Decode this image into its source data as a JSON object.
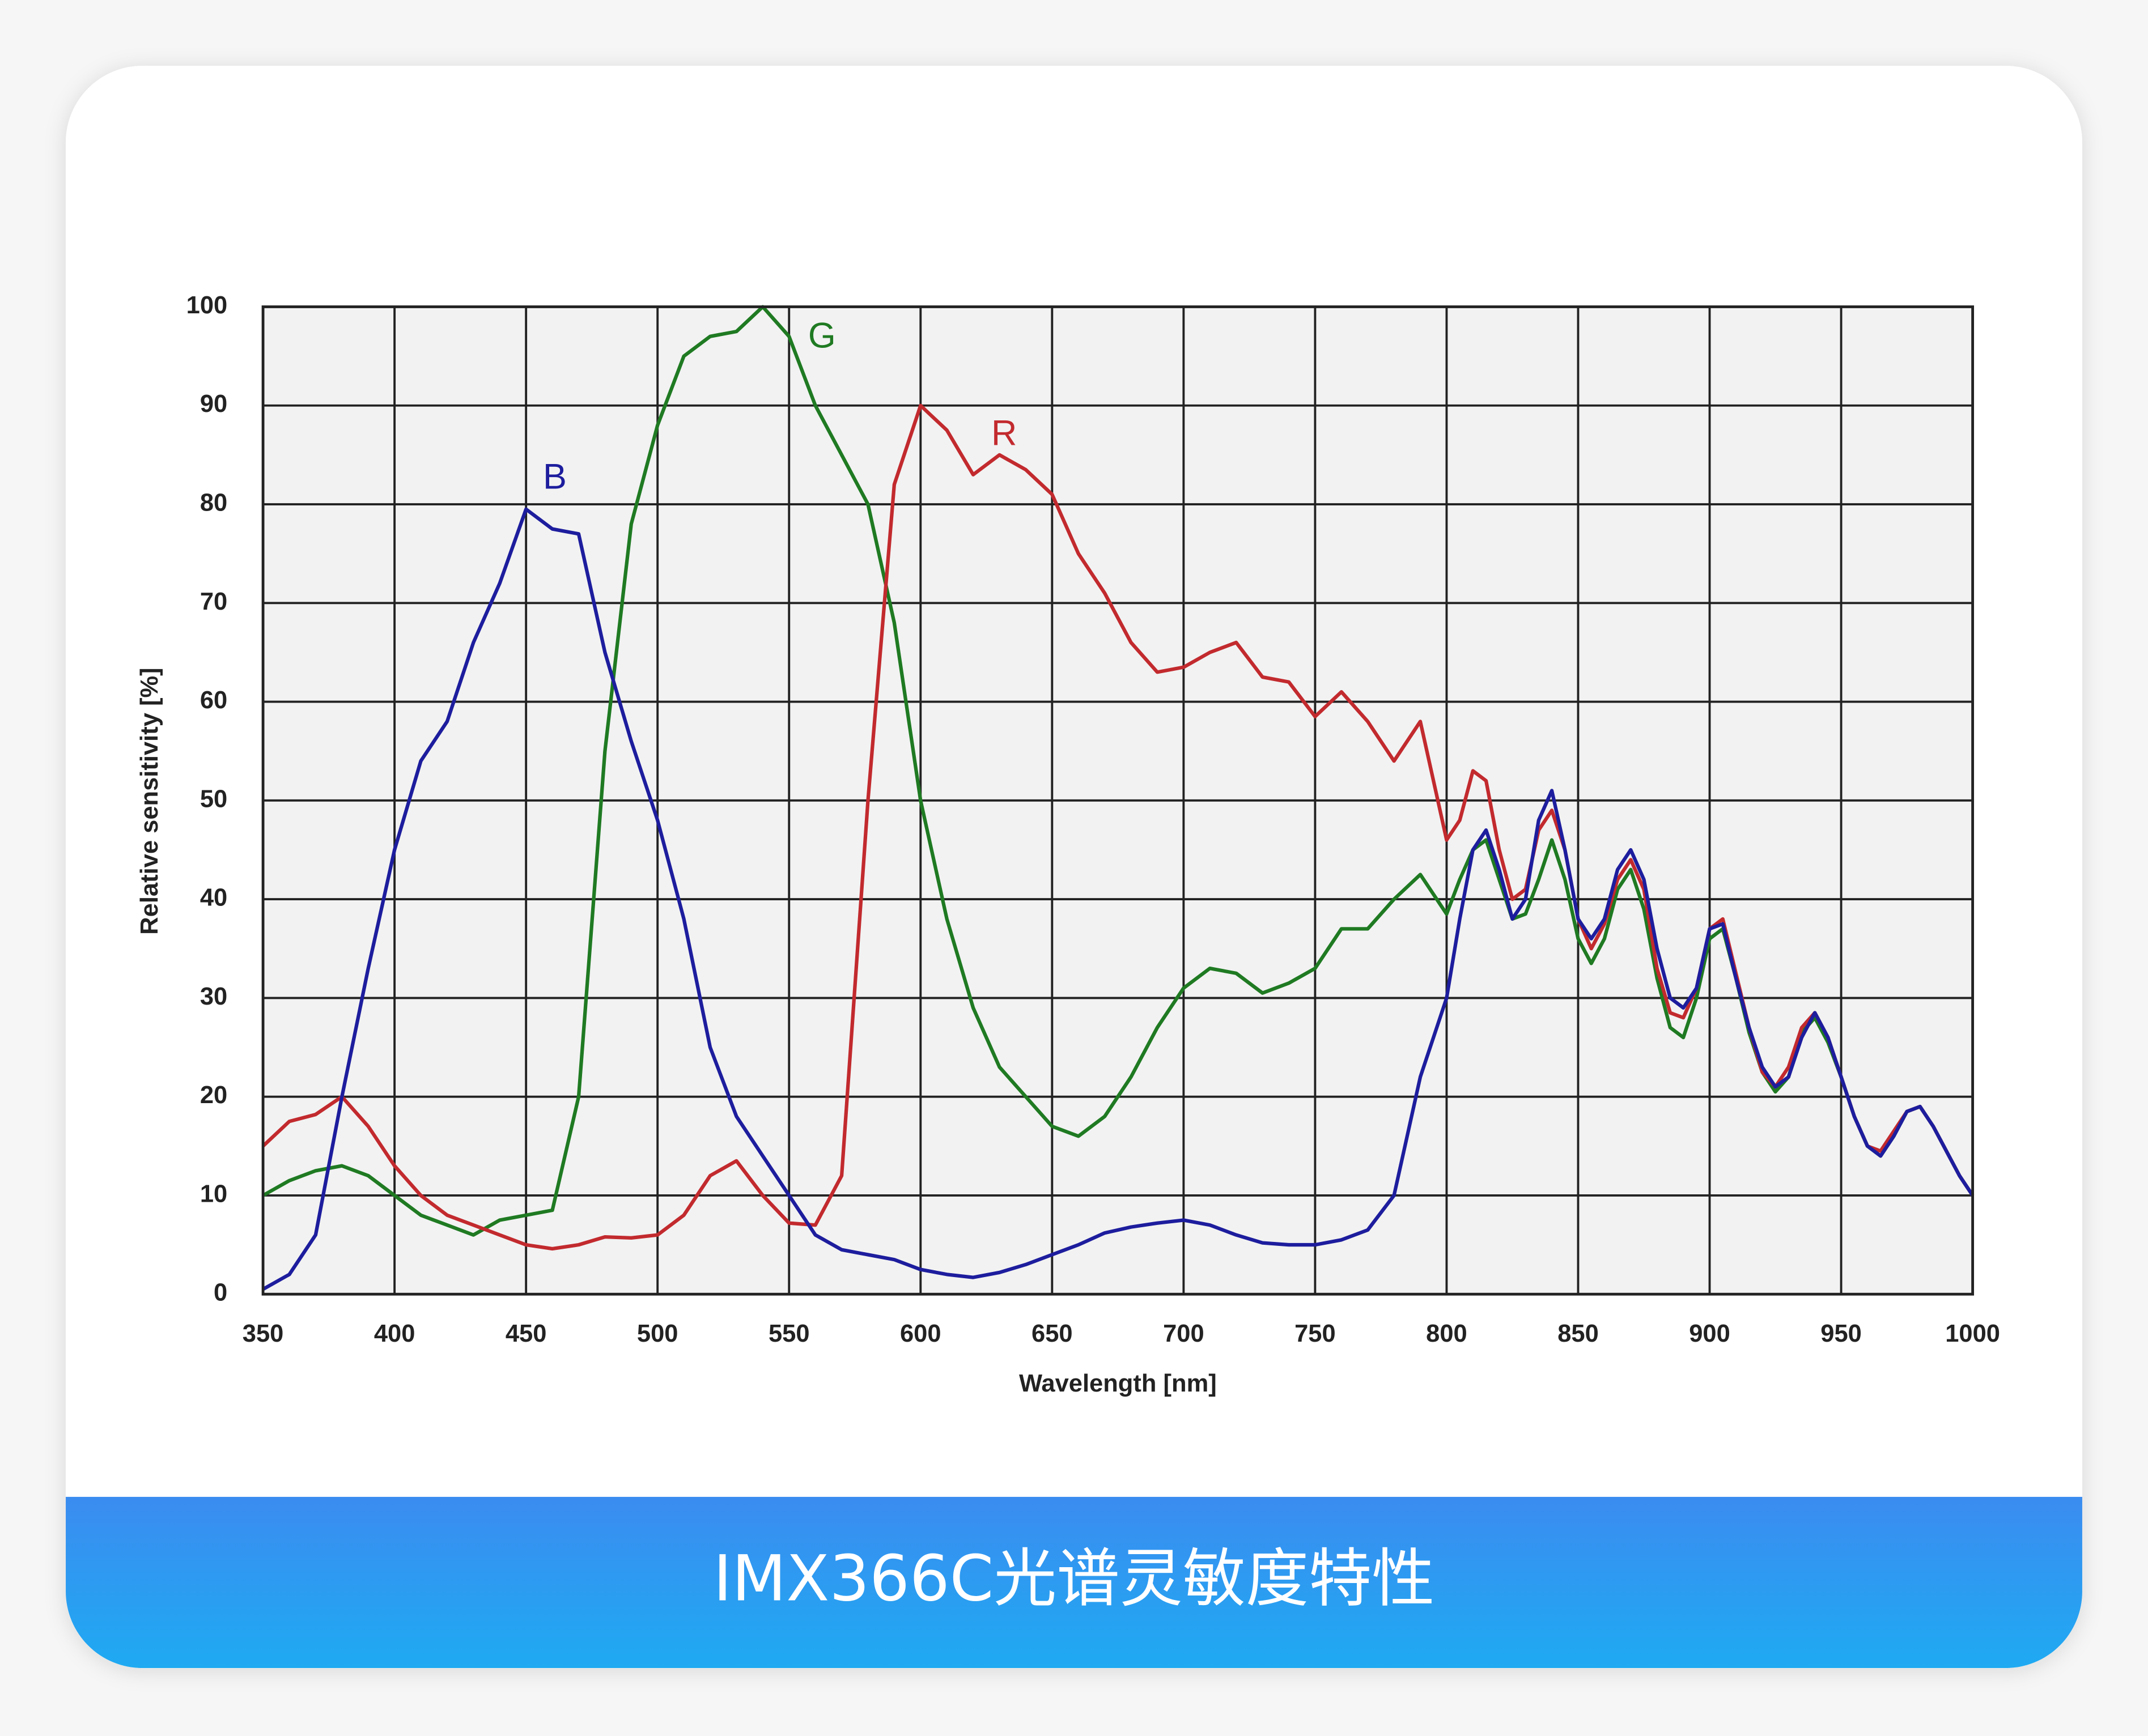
{
  "chart_data": {
    "type": "line",
    "x_label": "Wavelength [nm]",
    "y_label": "Relative sensitivity  [%]",
    "x": [
      350,
      360,
      370,
      380,
      390,
      400,
      410,
      420,
      430,
      440,
      450,
      460,
      470,
      480,
      490,
      500,
      510,
      520,
      530,
      540,
      550,
      560,
      570,
      580,
      590,
      600,
      610,
      620,
      630,
      640,
      650,
      660,
      670,
      680,
      690,
      700,
      710,
      720,
      730,
      740,
      750,
      760,
      770,
      780,
      790,
      800,
      805,
      810,
      815,
      820,
      825,
      830,
      835,
      840,
      845,
      850,
      855,
      860,
      865,
      870,
      875,
      880,
      885,
      890,
      895,
      900,
      905,
      910,
      915,
      920,
      925,
      930,
      935,
      940,
      945,
      950,
      955,
      960,
      965,
      970,
      975,
      980,
      985,
      990,
      995,
      1000
    ],
    "series": [
      {
        "name": "G",
        "color": "#1f7a22",
        "values": [
          10,
          11.5,
          12.5,
          13,
          12,
          10,
          8,
          7,
          6,
          7.5,
          8,
          8.5,
          20,
          55,
          78,
          88,
          95,
          97,
          97.5,
          100,
          97,
          90,
          85,
          80,
          68,
          50,
          38,
          29,
          23,
          20,
          17,
          16,
          18,
          22,
          27,
          31,
          33,
          32.5,
          30.5,
          31.5,
          33,
          37,
          37,
          40,
          42.5,
          38.5,
          42,
          45,
          46,
          42,
          38,
          38.5,
          42,
          46,
          42,
          36,
          33.5,
          36,
          41,
          43,
          39,
          32,
          27,
          26,
          30,
          36,
          37,
          32,
          26.5,
          22.5,
          20.5,
          22,
          26.5,
          28,
          25.5,
          22,
          18,
          15,
          14,
          16,
          18.5,
          19,
          17,
          14.5,
          12,
          10
        ]
      },
      {
        "name": "R",
        "color": "#c22a2e",
        "values": [
          15,
          17.5,
          18.2,
          20,
          17,
          13,
          10,
          8,
          7,
          6,
          5,
          4.6,
          5,
          5.8,
          5.7,
          6,
          8,
          12,
          13.5,
          10,
          7.2,
          7,
          12,
          50,
          82,
          90,
          87.5,
          83,
          85,
          83.5,
          81,
          75,
          71,
          66,
          63,
          63.5,
          65,
          66,
          62.5,
          62,
          58.5,
          61,
          58,
          54,
          58,
          46,
          48,
          53,
          52,
          45,
          40,
          41,
          47,
          49,
          45,
          38,
          35,
          37.5,
          42,
          44,
          41,
          33,
          28.5,
          28,
          31,
          37,
          38,
          32.5,
          27,
          22.5,
          21,
          23,
          27,
          28.5,
          26,
          22,
          18,
          15,
          14.5,
          16.5,
          18.5,
          19,
          17,
          14.5,
          12,
          10
        ]
      },
      {
        "name": "B",
        "color": "#1d1d9e",
        "values": [
          0.5,
          2,
          6,
          20,
          33,
          45,
          54,
          58,
          66,
          72,
          79.5,
          77.5,
          77,
          65,
          56,
          48,
          38,
          25,
          18,
          14,
          10,
          6,
          4.5,
          4,
          3.5,
          2.5,
          2,
          1.7,
          2.2,
          3,
          4,
          5,
          6.2,
          6.8,
          7.2,
          7.5,
          7,
          6,
          5.2,
          5,
          5,
          5.5,
          6.5,
          10,
          22,
          30,
          38,
          45,
          47,
          43,
          38,
          40,
          48,
          51,
          45,
          38,
          36,
          38,
          43,
          45,
          42,
          35,
          30,
          29,
          31,
          37,
          37.5,
          32,
          27,
          23,
          21,
          22,
          26,
          28.5,
          26,
          22,
          18,
          15,
          14,
          16,
          18.5,
          19,
          17,
          14.5,
          12,
          10
        ]
      }
    ],
    "xlim": [
      350,
      1000
    ],
    "ylim": [
      0,
      100
    ],
    "xticks": [
      350,
      400,
      450,
      500,
      550,
      600,
      650,
      700,
      750,
      800,
      850,
      900,
      950,
      1000
    ],
    "yticks": [
      0,
      10,
      20,
      30,
      40,
      50,
      60,
      70,
      80,
      90,
      100
    ],
    "grid": true
  },
  "footer": {
    "caption": "IMX366C光谱灵敏度特性"
  }
}
